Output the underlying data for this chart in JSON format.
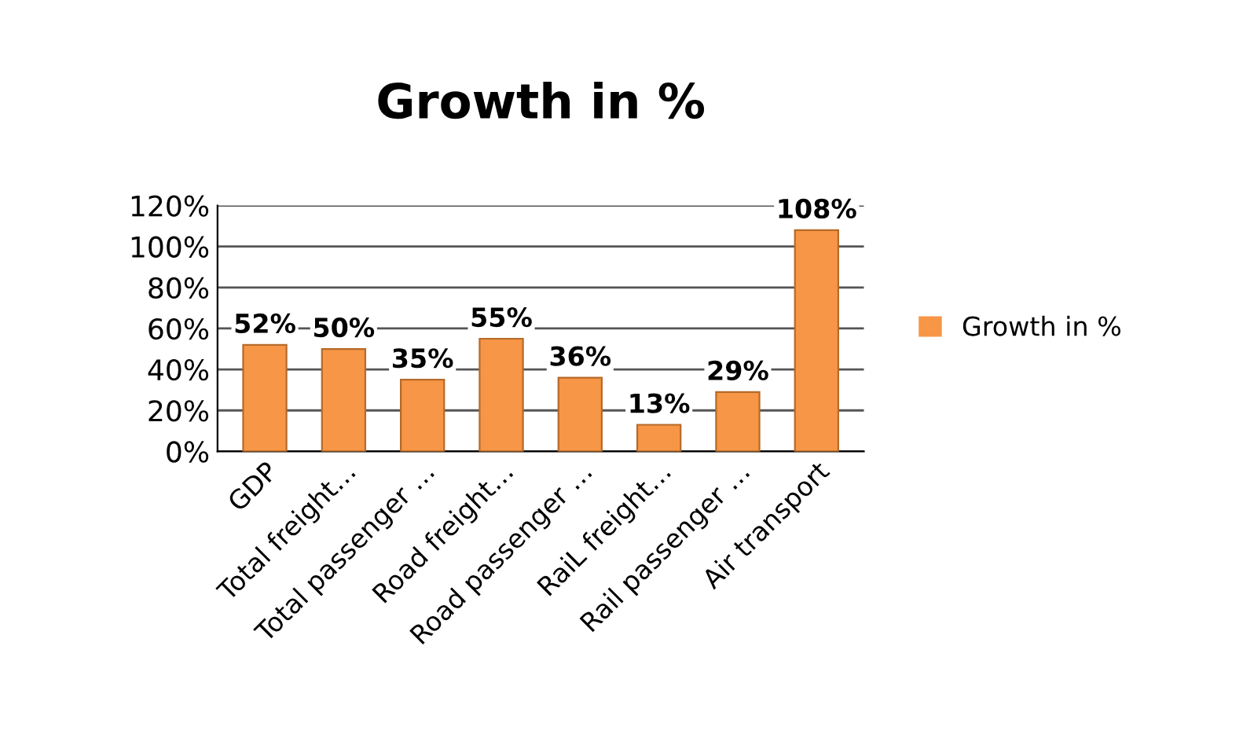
{
  "chart_data": {
    "type": "bar",
    "title": "Growth in %",
    "categories": [
      "GDP",
      "Total freight…",
      "Total passenger …",
      "Road freight…",
      "Road passenger …",
      "RaiL freight…",
      "Rail passenger …",
      "Air transport"
    ],
    "series": [
      {
        "name": "Growth in %",
        "color": "#f79646",
        "values": [
          52,
          50,
          35,
          55,
          36,
          13,
          29,
          108
        ]
      }
    ],
    "value_labels": [
      "52%",
      "50%",
      "35%",
      "55%",
      "36%",
      "13%",
      "29%",
      "108%"
    ],
    "ylim": [
      0,
      120
    ],
    "yticks": [
      {
        "value": 0,
        "label": "0%"
      },
      {
        "value": 20,
        "label": "20%"
      },
      {
        "value": 40,
        "label": "40%"
      },
      {
        "value": 60,
        "label": "60%"
      },
      {
        "value": 80,
        "label": "80%"
      },
      {
        "value": 100,
        "label": "100%"
      },
      {
        "value": 120,
        "label": "120%"
      }
    ],
    "grid": "y",
    "legend": "right"
  }
}
